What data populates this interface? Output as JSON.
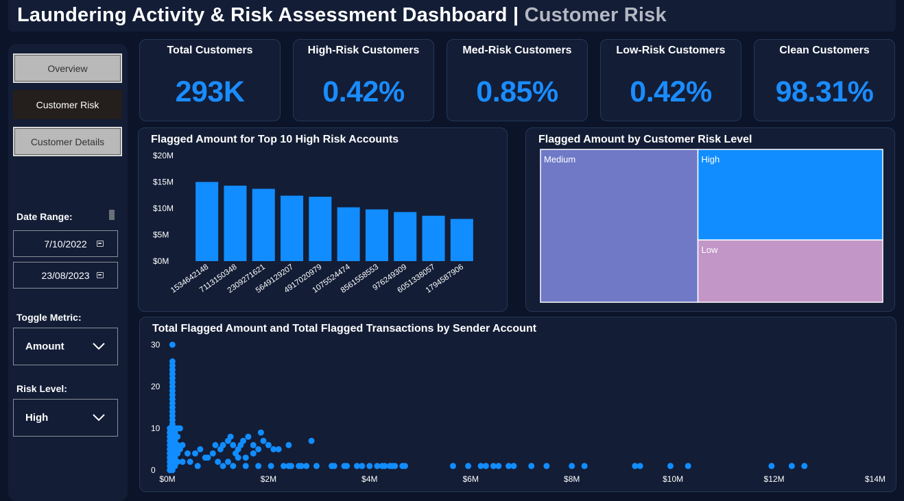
{
  "header": {
    "title_main": "Laundering Activity & Risk Assessment Dashboard |",
    "title_sub": "Customer Risk"
  },
  "nav": {
    "overview": "Overview",
    "customer_risk": "Customer Risk",
    "customer_details": "Customer Details"
  },
  "filters": {
    "date_range_label": "Date Range:",
    "date_start": "7/10/2022",
    "date_end": "23/08/2023",
    "toggle_metric_label": "Toggle Metric:",
    "toggle_metric_value": "Amount",
    "risk_level_label": "Risk Level:",
    "risk_level_value": "High"
  },
  "icons": {
    "calendar": "calendar-icon",
    "chevron": "chevron-down-icon"
  },
  "colors": {
    "accent": "#1a8cff",
    "medium": "#6f79c6",
    "high": "#118dff",
    "low": "#c296c6",
    "background": "#0b1428",
    "card": "#131d36"
  },
  "kpis": [
    {
      "title": "Total Customers",
      "value": "293K"
    },
    {
      "title": "High-Risk Customers",
      "value": "0.42%"
    },
    {
      "title": "Med-Risk Customers",
      "value": "0.85%"
    },
    {
      "title": "Low-Risk Customers",
      "value": "0.42%"
    },
    {
      "title": "Clean Customers",
      "value": "98.31%"
    }
  ],
  "charts": {
    "bar_title": "Flagged Amount for Top 10 High Risk Accounts",
    "treemap_title": "Flagged Amount by Customer Risk Level",
    "scatter_title": "Total Flagged Amount and Total Flagged Transactions by Sender Account"
  },
  "chart_data": [
    {
      "type": "bar",
      "title": "Flagged Amount for Top 10 High Risk Accounts",
      "categories": [
        "1534642148",
        "7113150348",
        "2309271621",
        "5649129207",
        "4917020979",
        "1075524474",
        "8561558553",
        "976249309",
        "6051338057",
        "1794587906"
      ],
      "values": [
        15.0,
        14.3,
        13.7,
        12.4,
        12.2,
        10.2,
        9.8,
        9.3,
        8.6,
        8.0
      ],
      "y_ticks": [
        "$0M",
        "$5M",
        "$10M",
        "$15M",
        "$20M"
      ],
      "ylim": [
        0,
        20
      ],
      "color": "#118dff"
    },
    {
      "type": "treemap",
      "title": "Flagged Amount by Customer Risk Level",
      "labels": [
        "Medium",
        "High",
        "Low"
      ],
      "values": [
        0.46,
        0.32,
        0.22
      ],
      "colors": [
        "#6f79c6",
        "#118dff",
        "#c296c6"
      ]
    },
    {
      "type": "scatter",
      "title": "Total Flagged Amount and Total Flagged Transactions by Sender Account",
      "x_ticks": [
        "$0M",
        "$2M",
        "$4M",
        "$6M",
        "$8M",
        "$10M",
        "$12M",
        "$14M"
      ],
      "y_ticks": [
        "0",
        "10",
        "20",
        "30"
      ],
      "xlim": [
        0,
        14
      ],
      "ylim": [
        0,
        30
      ],
      "color": "#118dff",
      "points": [
        [
          0.1,
          30
        ],
        [
          0.1,
          26
        ],
        [
          0.1,
          25
        ],
        [
          0.1,
          24
        ],
        [
          0.1,
          23
        ],
        [
          0.1,
          22
        ],
        [
          0.1,
          21
        ],
        [
          0.1,
          20
        ],
        [
          0.1,
          19
        ],
        [
          0.1,
          18
        ],
        [
          0.1,
          17
        ],
        [
          0.1,
          16
        ],
        [
          0.1,
          15
        ],
        [
          0.1,
          14
        ],
        [
          0.1,
          13
        ],
        [
          0.1,
          12
        ],
        [
          0.1,
          11
        ],
        [
          0.05,
          10
        ],
        [
          0.1,
          10
        ],
        [
          0.15,
          10
        ],
        [
          0.2,
          10
        ],
        [
          0.25,
          10
        ],
        [
          0.05,
          9
        ],
        [
          0.1,
          9
        ],
        [
          0.15,
          9
        ],
        [
          0.05,
          8
        ],
        [
          0.1,
          8
        ],
        [
          0.2,
          8
        ],
        [
          0.05,
          7
        ],
        [
          0.1,
          7
        ],
        [
          0.15,
          7
        ],
        [
          0.05,
          6
        ],
        [
          0.1,
          6
        ],
        [
          0.2,
          6
        ],
        [
          0.05,
          5
        ],
        [
          0.1,
          5
        ],
        [
          0.15,
          5
        ],
        [
          0.25,
          5
        ],
        [
          0.05,
          4
        ],
        [
          0.1,
          4
        ],
        [
          0.2,
          4
        ],
        [
          0.05,
          3
        ],
        [
          0.1,
          3
        ],
        [
          0.15,
          3
        ],
        [
          0.05,
          2
        ],
        [
          0.1,
          2
        ],
        [
          0.2,
          2
        ],
        [
          0.05,
          1
        ],
        [
          0.1,
          1
        ],
        [
          0.15,
          1
        ],
        [
          0.05,
          0
        ],
        [
          0.1,
          0
        ],
        [
          0.3,
          6
        ],
        [
          0.4,
          4
        ],
        [
          0.55,
          4
        ],
        [
          0.65,
          5
        ],
        [
          0.75,
          3
        ],
        [
          0.9,
          4
        ],
        [
          0.95,
          6
        ],
        [
          1.05,
          5
        ],
        [
          1.1,
          6
        ],
        [
          1.2,
          7
        ],
        [
          1.25,
          8
        ],
        [
          1.3,
          6
        ],
        [
          1.35,
          4
        ],
        [
          1.4,
          5
        ],
        [
          1.45,
          6
        ],
        [
          1.5,
          7
        ],
        [
          1.55,
          3
        ],
        [
          1.6,
          8
        ],
        [
          1.7,
          6
        ],
        [
          1.8,
          5
        ],
        [
          1.85,
          9
        ],
        [
          1.9,
          7
        ],
        [
          2.0,
          6
        ],
        [
          2.1,
          5
        ],
        [
          2.2,
          5
        ],
        [
          2.4,
          6
        ],
        [
          2.85,
          7
        ],
        [
          1.1,
          1
        ],
        [
          1.3,
          1
        ],
        [
          1.55,
          1
        ],
        [
          1.8,
          1
        ],
        [
          2.05,
          1
        ],
        [
          2.3,
          1
        ],
        [
          2.4,
          1
        ],
        [
          2.45,
          1
        ],
        [
          2.6,
          1
        ],
        [
          2.65,
          1
        ],
        [
          2.75,
          1
        ],
        [
          2.95,
          1
        ],
        [
          3.25,
          1
        ],
        [
          3.3,
          1
        ],
        [
          3.5,
          1
        ],
        [
          3.55,
          1
        ],
        [
          3.75,
          1
        ],
        [
          3.85,
          1
        ],
        [
          4.0,
          1
        ],
        [
          4.15,
          1
        ],
        [
          4.25,
          1
        ],
        [
          4.3,
          1
        ],
        [
          4.4,
          1
        ],
        [
          4.45,
          1
        ],
        [
          4.5,
          1
        ],
        [
          4.65,
          1
        ],
        [
          4.7,
          1
        ],
        [
          5.65,
          1
        ],
        [
          5.95,
          1
        ],
        [
          6.2,
          1
        ],
        [
          6.3,
          1
        ],
        [
          6.45,
          1
        ],
        [
          6.55,
          1
        ],
        [
          6.75,
          1
        ],
        [
          6.85,
          1
        ],
        [
          7.2,
          1
        ],
        [
          7.5,
          1
        ],
        [
          8.0,
          1
        ],
        [
          8.25,
          1
        ],
        [
          9.25,
          1
        ],
        [
          9.35,
          1
        ],
        [
          9.95,
          1
        ],
        [
          10.3,
          1
        ],
        [
          11.95,
          1
        ],
        [
          12.35,
          1
        ],
        [
          12.6,
          1
        ],
        [
          0.3,
          2
        ],
        [
          0.45,
          2
        ],
        [
          0.6,
          1
        ],
        [
          0.8,
          3
        ],
        [
          1.0,
          2
        ],
        [
          1.2,
          2
        ],
        [
          1.4,
          3
        ],
        [
          1.7,
          4
        ]
      ]
    }
  ]
}
